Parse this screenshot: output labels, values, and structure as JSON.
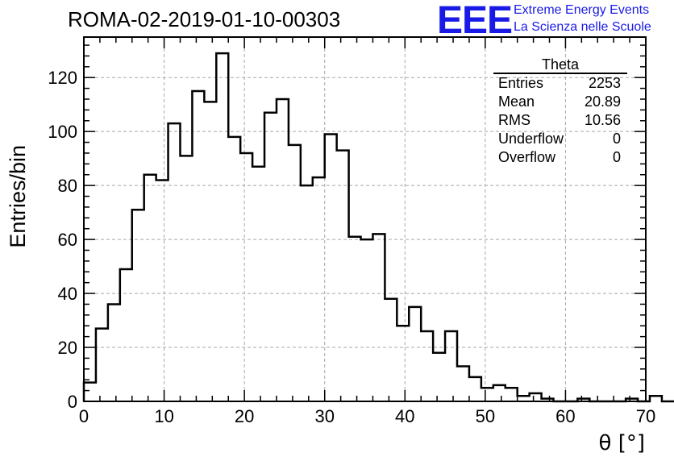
{
  "header": {
    "title": "ROMA-02-2019-01-10-00303",
    "logo_text": "EEE",
    "org_line1": "Extreme Energy Events",
    "org_line2": "La Scienza nelle Scuole"
  },
  "stats": {
    "name": "Theta",
    "rows": [
      {
        "label": "Entries",
        "value": "2253"
      },
      {
        "label": "Mean",
        "value": "20.89"
      },
      {
        "label": "RMS",
        "value": "10.56"
      },
      {
        "label": "Underflow",
        "value": "0"
      },
      {
        "label": "Overflow",
        "value": "0"
      }
    ]
  },
  "colors": {
    "line": "#000000",
    "grid": "#a8a8a8",
    "brand": "#1a1ae6"
  },
  "chart_data": {
    "type": "histogram",
    "title": "ROMA-02-2019-01-10-00303",
    "xlabel": "θ [°]",
    "ylabel": "Entries/bin",
    "xlim": [
      0,
      70
    ],
    "ylim": [
      0,
      135
    ],
    "x_ticks": [
      0,
      10,
      20,
      30,
      40,
      50,
      60,
      70
    ],
    "y_ticks": [
      0,
      20,
      40,
      60,
      80,
      100,
      120
    ],
    "grid": true,
    "bin_width": 1.5,
    "bin_edges_start": 0,
    "values": [
      7,
      27,
      36,
      49,
      71,
      84,
      82,
      103,
      91,
      115,
      111,
      129,
      98,
      92,
      87,
      107,
      112,
      95,
      80,
      83,
      99,
      93,
      61,
      60,
      62,
      38,
      28,
      35,
      26,
      18,
      26,
      13,
      9,
      5,
      6,
      5,
      2,
      3,
      1,
      0,
      0,
      1,
      0,
      0,
      0,
      1,
      0,
      2,
      0,
      0
    ]
  }
}
